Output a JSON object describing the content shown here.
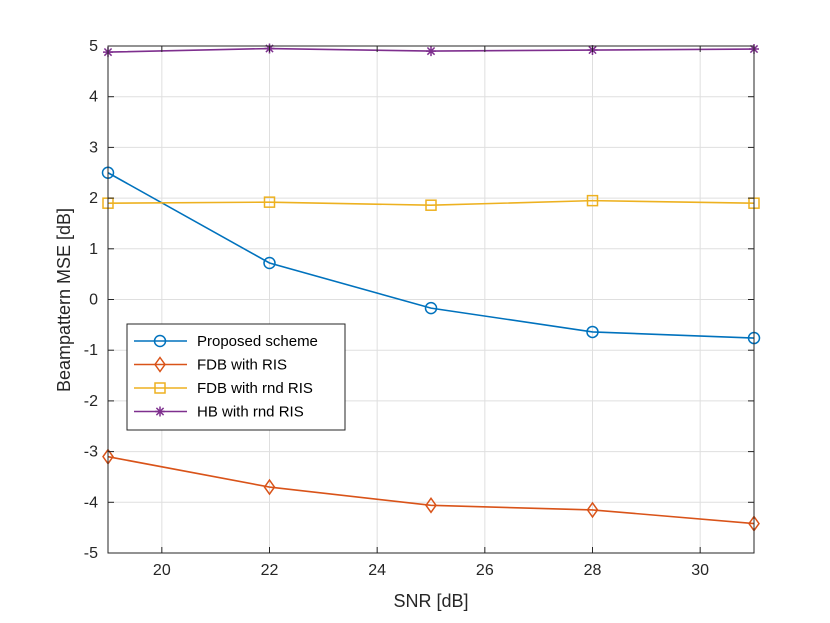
{
  "chart_data": {
    "type": "line",
    "title": "",
    "xlabel": "SNR [dB]",
    "ylabel": "Beampattern MSE [dB]",
    "xlim": [
      19,
      31
    ],
    "ylim": [
      -5,
      5
    ],
    "xticks": [
      20,
      22,
      24,
      26,
      28,
      30
    ],
    "yticks": [
      -5,
      -4,
      -3,
      -2,
      -1,
      0,
      1,
      2,
      3,
      4,
      5
    ],
    "grid": true,
    "legend_position": "left",
    "x": [
      19,
      22,
      25,
      28,
      31
    ],
    "series": [
      {
        "name": "Proposed scheme",
        "color": "#0072bd",
        "marker": "circle",
        "values": [
          2.5,
          0.72,
          -0.17,
          -0.64,
          -0.76
        ]
      },
      {
        "name": "FDB with RIS",
        "color": "#d95319",
        "marker": "diamond",
        "values": [
          -3.1,
          -3.7,
          -4.06,
          -4.15,
          -4.42
        ]
      },
      {
        "name": "FDB with rnd RIS",
        "color": "#edb120",
        "marker": "square",
        "values": [
          1.9,
          1.92,
          1.86,
          1.95,
          1.9
        ]
      },
      {
        "name": "HB with rnd RIS",
        "color": "#7e2f8e",
        "marker": "asterisk",
        "values": [
          4.88,
          4.95,
          4.9,
          4.92,
          4.94
        ]
      }
    ]
  }
}
